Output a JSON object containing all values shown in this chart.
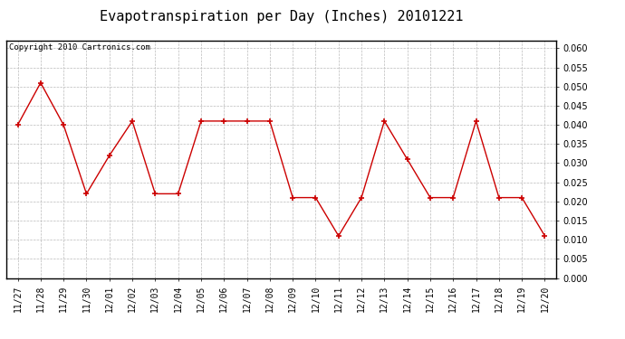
{
  "title": "Evapotranspiration per Day (Inches) 20101221",
  "copyright": "Copyright 2010 Cartronics.com",
  "labels": [
    "11/27",
    "11/28",
    "11/29",
    "11/30",
    "12/01",
    "12/02",
    "12/03",
    "12/04",
    "12/05",
    "12/06",
    "12/07",
    "12/08",
    "12/09",
    "12/10",
    "12/11",
    "12/12",
    "12/13",
    "12/14",
    "12/15",
    "12/16",
    "12/17",
    "12/18",
    "12/19",
    "12/20"
  ],
  "values": [
    0.04,
    0.051,
    0.04,
    0.022,
    0.032,
    0.041,
    0.022,
    0.022,
    0.041,
    0.041,
    0.041,
    0.041,
    0.021,
    0.021,
    0.011,
    0.021,
    0.041,
    0.031,
    0.021,
    0.021,
    0.041,
    0.021,
    0.021,
    0.011
  ],
  "ylim": [
    0.0,
    0.062
  ],
  "yticks": [
    0.0,
    0.005,
    0.01,
    0.015,
    0.02,
    0.025,
    0.03,
    0.035,
    0.04,
    0.045,
    0.05,
    0.055,
    0.06
  ],
  "line_color": "#cc0000",
  "marker": "+",
  "marker_color": "#cc0000",
  "bg_color": "#ffffff",
  "grid_color": "#bbbbbb",
  "title_fontsize": 11,
  "copyright_fontsize": 6.5,
  "tick_fontsize": 7,
  "figsize": [
    6.9,
    3.75
  ],
  "dpi": 100
}
